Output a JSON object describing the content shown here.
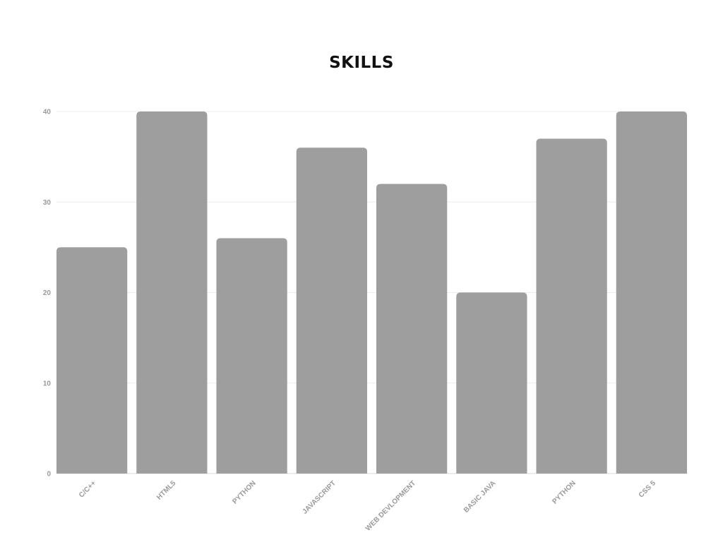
{
  "chart_data": {
    "type": "bar",
    "title": "SKILLS",
    "categories": [
      "C/C++",
      "HTML5",
      "PYTHON",
      "JAVASCRIPT",
      "WEB DEVLOPMENT",
      "BASIC JAVA",
      "PYTHON",
      "CSS 5"
    ],
    "values": [
      25,
      40,
      26,
      36,
      32,
      20,
      37,
      40
    ],
    "ylim": [
      0,
      40
    ],
    "yticks": [
      0,
      10,
      20,
      30,
      40
    ],
    "xlabel": "",
    "ylabel": "",
    "grid": true,
    "legend": "none",
    "bar_color": "#9e9e9e",
    "grid_color": "#ebebeb",
    "label_color": "#9a9a9a"
  }
}
